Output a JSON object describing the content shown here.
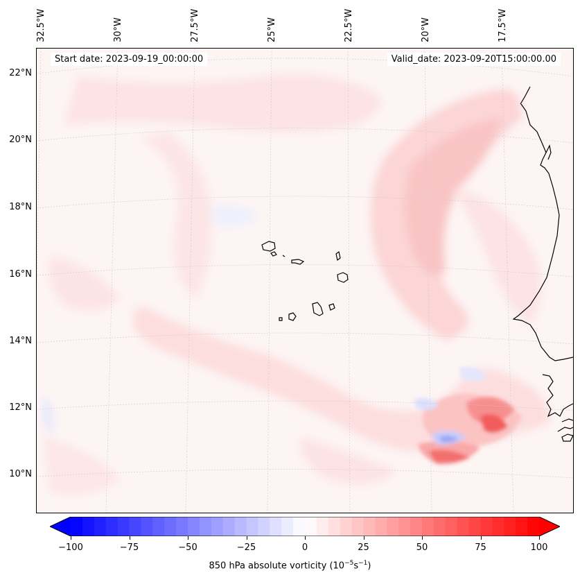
{
  "map": {
    "start_date": "Start date: 2023-09-19_00:00:00",
    "valid_date": "Valid_date: 2023-09-20T15:00:00.00",
    "lon_labels": [
      "32.5°W",
      "30°W",
      "27.5°W",
      "25°W",
      "22.5°W",
      "20°W",
      "17.5°W"
    ],
    "lat_labels": [
      "22°N",
      "20°N",
      "18°N",
      "16°N",
      "14°N",
      "12°N",
      "10°N"
    ],
    "variable": "850 hPa absolute vorticity",
    "units_base": "10",
    "units_exp1": "−5",
    "units_s": "s",
    "units_exp2": "−1"
  },
  "colorbar": {
    "ticks": [
      "−100",
      "−75",
      "−50",
      "−25",
      "0",
      "25",
      "50",
      "75",
      "100"
    ],
    "range": [
      -100,
      100
    ],
    "extend": "both",
    "colormap": "bwr"
  },
  "colors": {
    "coast": "#000000",
    "grid": "#cccccc",
    "positive": "#ff0000",
    "negative": "#0000ff"
  }
}
